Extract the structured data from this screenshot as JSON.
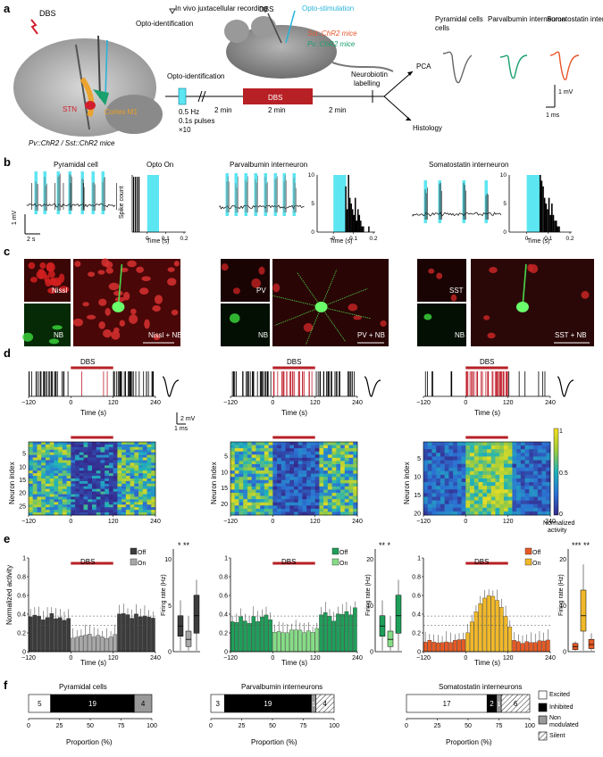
{
  "panels": {
    "a": "a",
    "b": "b",
    "c": "c",
    "d": "d",
    "e": "e",
    "f": "f"
  },
  "panel_a": {
    "dbs": "DBS",
    "juxta": "In vivo juxtacellular recording",
    "optoid": "Opto-identification",
    "stn": "STN",
    "cortex": "Cortex M1",
    "mice": "Pv::ChR2 / Sst::ChR2 mice",
    "dbs_mouse": "DBS",
    "opto_stim": "Opto-stimulation",
    "sst_mice": "Sst::ChR2 mice",
    "pv_mice": "Pv::ChR2 mice",
    "timeline_optoid": "Opto-identification",
    "hz": "0.5 Hz",
    "pulses": "0.1s pulses",
    "x10": "×10",
    "min1": "2 min",
    "dbs_block": "DBS",
    "min2": "2 min",
    "min3": "2 min",
    "neurobiotin": "Neurobiotin",
    "labelling": "labelling",
    "pca": "PCA",
    "histology": "Histology",
    "cell_types": [
      "Pyramidal cells",
      "Parvalbumin interneuron",
      "Somatostatin interneuron"
    ],
    "scale_mv": "1 mV",
    "scale_ms": "1 ms",
    "colors": {
      "pyr": "#555555",
      "pv": "#1aa06d",
      "sst": "#e8552a",
      "dbs": "#b72025",
      "opto": "#27b4d8"
    }
  },
  "panel_b": {
    "titles": [
      "Pyramidal cell",
      "Parvalbumin interneuron",
      "Somatostatin interneuron"
    ],
    "opto_on": "Opto On",
    "scale_mv": "1 mV",
    "scale_s": "2 s",
    "ylabel": "Spike count",
    "xlabel": "Time (s)",
    "ticks": [
      "0",
      "0.1",
      "0.2"
    ],
    "yticks": [
      "0",
      "5",
      "10"
    ]
  },
  "panel_c": {
    "labels": [
      "Nissl",
      "NB",
      "Nissl + NB",
      "PV",
      "NB",
      "PV + NB",
      "SST",
      "NB",
      "SST + NB"
    ]
  },
  "panel_d": {
    "dbs": "DBS",
    "xlabel": "Time (s)",
    "xticks": [
      "−120",
      "0",
      "120",
      "240"
    ],
    "ylabel": "Neuron index",
    "yticks_1": [
      "5",
      "10",
      "15",
      "20",
      "25"
    ],
    "yticks_2": [
      "5",
      "10",
      "15",
      "20"
    ],
    "yticks_3": [
      "5",
      "10",
      "15",
      "20"
    ],
    "cbar_ticks": [
      "1",
      "0.5",
      "0"
    ],
    "cbar_label1": "Normalized",
    "cbar_label2": "activity",
    "scale_mv": "2 mV",
    "scale_ms": "1 ms"
  },
  "panel_e": {
    "dbs": "DBS",
    "ylabel": "Normalized activity",
    "xlabel": "Time (s)",
    "xticks": [
      "−120",
      "0",
      "120",
      "240"
    ],
    "yticks": [
      "0",
      "0.2",
      "0.4",
      "0.6",
      "0.8",
      "1"
    ],
    "off": "Off",
    "on": "On",
    "fr_label": "Firing rate (Hz)",
    "fr_ticks_1": [
      "0",
      "5",
      "10"
    ],
    "fr_ticks_2": [
      "0",
      "10",
      "20"
    ],
    "fr_ticks_3": [
      "0",
      "10",
      "20"
    ],
    "sig_1": "* **",
    "sig_2": "** *",
    "sig_3": "*** **"
  },
  "panel_f": {
    "titles": [
      "Pyramidal cells",
      "Parvalbumin interneurons",
      "Somatostatin interneurons"
    ],
    "xlabel": "Proportion (%)",
    "xticks": [
      "0",
      "25",
      "50",
      "75",
      "100"
    ],
    "legend": [
      "Excited",
      "Inhibited",
      "Non modulated",
      "Silent"
    ],
    "legend_nm": [
      "Non",
      "modulated"
    ]
  },
  "chart_data": [
    {
      "type": "bar",
      "title": "Pyramidal cells",
      "xlabel": "Proportion (%)",
      "categories": [
        "Excited",
        "Inhibited",
        "Non modulated",
        "Silent"
      ],
      "values": [
        5,
        19,
        4,
        0
      ]
    },
    {
      "type": "bar",
      "title": "Parvalbumin interneurons",
      "xlabel": "Proportion (%)",
      "categories": [
        "Excited",
        "Inhibited",
        "Non modulated",
        "Silent"
      ],
      "values": [
        3,
        19,
        1,
        4
      ]
    },
    {
      "type": "bar",
      "title": "Somatostatin interneurons",
      "xlabel": "Proportion (%)",
      "categories": [
        "Excited",
        "Inhibited",
        "Non modulated",
        "Silent"
      ],
      "values": [
        17,
        2,
        1,
        6
      ]
    }
  ]
}
